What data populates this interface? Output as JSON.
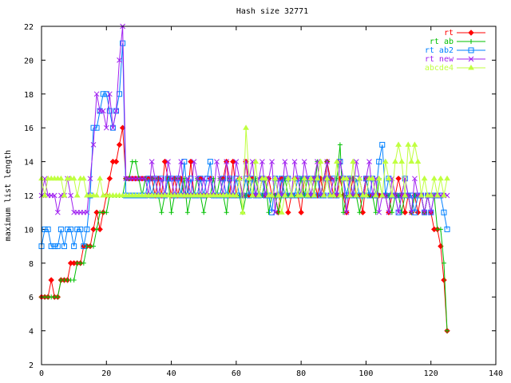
{
  "chart_data": {
    "type": "line",
    "title": "Hash size 32771",
    "xlabel": "",
    "ylabel": "maximum list length",
    "xlim": [
      0,
      140
    ],
    "ylim": [
      2,
      22
    ],
    "x_ticks": [
      0,
      20,
      40,
      60,
      80,
      100,
      120,
      140
    ],
    "y_ticks": [
      2,
      4,
      6,
      8,
      10,
      12,
      14,
      16,
      18,
      20,
      22
    ],
    "x_tick_labels": [
      "0",
      "20",
      "40",
      "60",
      "80",
      "100",
      "120",
      "140"
    ],
    "y_tick_labels": [
      "2",
      "4",
      "6",
      "8",
      "10",
      "12",
      "14",
      "16",
      "18",
      "20",
      "22"
    ],
    "legend_position": "top-right",
    "grid": false,
    "series": [
      {
        "name": "rt",
        "color": "#ff0000",
        "marker": "diamond",
        "x": [
          0,
          1,
          2,
          3,
          4,
          5,
          6,
          7,
          8,
          9,
          10,
          11,
          12,
          13,
          14,
          15,
          16,
          17,
          18,
          19,
          20,
          21,
          22,
          23,
          24,
          25,
          26,
          27,
          28,
          29,
          30,
          31,
          32,
          33,
          34,
          35,
          36,
          37,
          38,
          39,
          40,
          41,
          42,
          43,
          44,
          45,
          46,
          47,
          48,
          49,
          50,
          51,
          52,
          53,
          54,
          55,
          56,
          57,
          58,
          59,
          60,
          61,
          62,
          63,
          64,
          65,
          66,
          67,
          68,
          69,
          70,
          71,
          72,
          73,
          74,
          75,
          76,
          77,
          78,
          79,
          80,
          81,
          82,
          83,
          84,
          85,
          86,
          87,
          88,
          89,
          90,
          91,
          92,
          93,
          94,
          95,
          96,
          97,
          98,
          99,
          100,
          101,
          102,
          103,
          104,
          105,
          106,
          107,
          108,
          109,
          110,
          111,
          112,
          113,
          114,
          115,
          116,
          117,
          118,
          119,
          120,
          121,
          122,
          123,
          124,
          125
        ],
        "values": [
          6,
          6,
          6,
          7,
          6,
          6,
          7,
          7,
          7,
          8,
          8,
          8,
          8,
          9,
          9,
          9,
          10,
          11,
          10,
          11,
          12,
          13,
          14,
          14,
          15,
          16,
          13,
          13,
          13,
          13,
          13,
          13,
          13,
          13,
          13,
          12,
          13,
          12,
          14,
          13,
          12,
          13,
          12,
          13,
          12,
          12,
          14,
          12,
          12,
          13,
          12,
          12,
          13,
          12,
          12,
          12,
          13,
          14,
          12,
          14,
          12,
          13,
          12,
          14,
          12,
          13,
          12,
          12,
          13,
          12,
          13,
          12,
          12,
          11,
          13,
          12,
          11,
          12,
          13,
          12,
          11,
          13,
          12,
          12,
          13,
          12,
          13,
          12,
          14,
          13,
          12,
          12,
          13,
          12,
          11,
          12,
          13,
          12,
          12,
          11,
          13,
          12,
          12,
          12,
          12,
          12,
          12,
          11,
          12,
          12,
          13,
          12,
          11,
          12,
          11,
          12,
          11,
          12,
          11,
          12,
          11,
          10,
          10,
          9,
          7,
          4
        ]
      },
      {
        "name": "rt ab",
        "color": "#00c000",
        "marker": "plus",
        "x": [
          0,
          1,
          2,
          3,
          4,
          5,
          6,
          7,
          8,
          9,
          10,
          11,
          12,
          13,
          14,
          15,
          16,
          17,
          18,
          19,
          20,
          21,
          22,
          23,
          24,
          25,
          26,
          27,
          28,
          29,
          30,
          31,
          32,
          33,
          34,
          35,
          36,
          37,
          38,
          39,
          40,
          41,
          42,
          43,
          44,
          45,
          46,
          47,
          48,
          49,
          50,
          51,
          52,
          53,
          54,
          55,
          56,
          57,
          58,
          59,
          60,
          61,
          62,
          63,
          64,
          65,
          66,
          67,
          68,
          69,
          70,
          71,
          72,
          73,
          74,
          75,
          76,
          77,
          78,
          79,
          80,
          81,
          82,
          83,
          84,
          85,
          86,
          87,
          88,
          89,
          90,
          91,
          92,
          93,
          94,
          95,
          96,
          97,
          98,
          99,
          100,
          101,
          102,
          103,
          104,
          105,
          106,
          107,
          108,
          109,
          110,
          111,
          112,
          113,
          114,
          115,
          116,
          117,
          118,
          119,
          120,
          121,
          122,
          123,
          124,
          125
        ],
        "values": [
          6,
          6,
          6,
          6,
          6,
          6,
          7,
          7,
          7,
          7,
          7,
          8,
          8,
          8,
          9,
          9,
          9,
          10,
          11,
          11,
          11,
          12,
          12,
          12,
          12,
          12,
          13,
          13,
          14,
          14,
          13,
          12,
          13,
          12,
          12,
          13,
          12,
          11,
          12,
          13,
          11,
          12,
          13,
          12,
          13,
          11,
          12,
          12,
          13,
          12,
          11,
          12,
          12,
          13,
          12,
          13,
          12,
          11,
          13,
          12,
          12,
          12,
          11,
          12,
          13,
          12,
          13,
          12,
          12,
          13,
          11,
          12,
          12,
          11,
          12,
          13,
          12,
          12,
          12,
          12,
          13,
          12,
          13,
          12,
          12,
          14,
          12,
          13,
          14,
          12,
          12,
          13,
          15,
          11,
          12,
          13,
          12,
          12,
          11,
          12,
          13,
          12,
          12,
          11,
          13,
          12,
          12,
          12,
          11,
          12,
          12,
          11,
          12,
          12,
          11,
          12,
          12,
          12,
          11,
          12,
          12,
          12,
          10,
          10,
          8,
          4
        ]
      },
      {
        "name": "rt ab2",
        "color": "#0080ff",
        "marker": "square",
        "x": [
          0,
          1,
          2,
          3,
          4,
          5,
          6,
          7,
          8,
          9,
          10,
          11,
          12,
          13,
          14,
          15,
          16,
          17,
          18,
          19,
          20,
          21,
          22,
          23,
          24,
          25,
          26,
          27,
          28,
          29,
          30,
          31,
          32,
          33,
          34,
          35,
          36,
          37,
          38,
          39,
          40,
          41,
          42,
          43,
          44,
          45,
          46,
          47,
          48,
          49,
          50,
          51,
          52,
          53,
          54,
          55,
          56,
          57,
          58,
          59,
          60,
          61,
          62,
          63,
          64,
          65,
          66,
          67,
          68,
          69,
          70,
          71,
          72,
          73,
          74,
          75,
          76,
          77,
          78,
          79,
          80,
          81,
          82,
          83,
          84,
          85,
          86,
          87,
          88,
          89,
          90,
          91,
          92,
          93,
          94,
          95,
          96,
          97,
          98,
          99,
          100,
          101,
          102,
          103,
          104,
          105,
          106,
          107,
          108,
          109,
          110,
          111,
          112,
          113,
          114,
          115,
          116,
          117,
          118,
          119,
          120,
          121,
          122,
          123,
          124,
          125
        ],
        "values": [
          9,
          10,
          10,
          9,
          9,
          9,
          10,
          9,
          10,
          10,
          9,
          10,
          10,
          9,
          10,
          12,
          16,
          16,
          17,
          18,
          18,
          17,
          16,
          17,
          18,
          21,
          12,
          12,
          12,
          12,
          12,
          12,
          12,
          13,
          12,
          13,
          12,
          13,
          12,
          13,
          13,
          12,
          13,
          12,
          14,
          12,
          13,
          12,
          12,
          13,
          12,
          13,
          14,
          12,
          12,
          12,
          13,
          12,
          13,
          12,
          13,
          12,
          12,
          13,
          12,
          13,
          12,
          12,
          13,
          12,
          12,
          11,
          13,
          12,
          13,
          12,
          13,
          12,
          12,
          13,
          12,
          13,
          12,
          13,
          12,
          13,
          12,
          12,
          13,
          12,
          13,
          12,
          14,
          13,
          12,
          13,
          12,
          13,
          12,
          12,
          13,
          12,
          13,
          12,
          14,
          15,
          12,
          13,
          12,
          12,
          11,
          12,
          13,
          12,
          12,
          11,
          12,
          12,
          11,
          12,
          11,
          12,
          12,
          12,
          11,
          10
        ]
      },
      {
        "name": "rt new",
        "color": "#a020f0",
        "marker": "cross",
        "x": [
          0,
          1,
          2,
          3,
          4,
          5,
          6,
          7,
          8,
          9,
          10,
          11,
          12,
          13,
          14,
          15,
          16,
          17,
          18,
          19,
          20,
          21,
          22,
          23,
          24,
          25,
          26,
          27,
          28,
          29,
          30,
          31,
          32,
          33,
          34,
          35,
          36,
          37,
          38,
          39,
          40,
          41,
          42,
          43,
          44,
          45,
          46,
          47,
          48,
          49,
          50,
          51,
          52,
          53,
          54,
          55,
          56,
          57,
          58,
          59,
          60,
          61,
          62,
          63,
          64,
          65,
          66,
          67,
          68,
          69,
          70,
          71,
          72,
          73,
          74,
          75,
          76,
          77,
          78,
          79,
          80,
          81,
          82,
          83,
          84,
          85,
          86,
          87,
          88,
          89,
          90,
          91,
          92,
          93,
          94,
          95,
          96,
          97,
          98,
          99,
          100,
          101,
          102,
          103,
          104,
          105,
          106,
          107,
          108,
          109,
          110,
          111,
          112,
          113,
          114,
          115,
          116,
          117,
          118,
          119,
          120,
          121,
          122,
          123,
          124,
          125
        ],
        "values": [
          12,
          13,
          12,
          12,
          12,
          11,
          12,
          12,
          13,
          12,
          11,
          11,
          11,
          11,
          11,
          13,
          15,
          18,
          17,
          17,
          16,
          18,
          16,
          17,
          20,
          22,
          13,
          13,
          13,
          13,
          13,
          13,
          13,
          12,
          14,
          13,
          12,
          13,
          12,
          14,
          13,
          12,
          13,
          14,
          12,
          13,
          12,
          14,
          13,
          12,
          13,
          12,
          13,
          12,
          14,
          13,
          12,
          14,
          13,
          12,
          14,
          13,
          12,
          14,
          13,
          14,
          12,
          13,
          14,
          12,
          13,
          14,
          11,
          13,
          12,
          14,
          13,
          12,
          14,
          13,
          12,
          14,
          13,
          12,
          13,
          14,
          12,
          13,
          14,
          12,
          13,
          12,
          14,
          13,
          11,
          13,
          12,
          14,
          13,
          12,
          13,
          14,
          12,
          13,
          11,
          12,
          12,
          11,
          13,
          12,
          11,
          12,
          13,
          12,
          11,
          13,
          12,
          12,
          11,
          12,
          11,
          12,
          12,
          12,
          12,
          12
        ]
      },
      {
        "name": "abcde4",
        "color": "#c0ff40",
        "marker": "triangle",
        "x": [
          0,
          1,
          2,
          3,
          4,
          5,
          6,
          7,
          8,
          9,
          10,
          11,
          12,
          13,
          14,
          15,
          16,
          17,
          18,
          19,
          20,
          21,
          22,
          23,
          24,
          25,
          26,
          27,
          28,
          29,
          30,
          31,
          32,
          33,
          34,
          35,
          36,
          37,
          38,
          39,
          40,
          41,
          42,
          43,
          44,
          45,
          46,
          47,
          48,
          49,
          50,
          51,
          52,
          53,
          54,
          55,
          56,
          57,
          58,
          59,
          60,
          61,
          62,
          63,
          64,
          65,
          66,
          67,
          68,
          69,
          70,
          71,
          72,
          73,
          74,
          75,
          76,
          77,
          78,
          79,
          80,
          81,
          82,
          83,
          84,
          85,
          86,
          87,
          88,
          89,
          90,
          91,
          92,
          93,
          94,
          95,
          96,
          97,
          98,
          99,
          100,
          101,
          102,
          103,
          104,
          105,
          106,
          107,
          108,
          109,
          110,
          111,
          112,
          113,
          114,
          115,
          116,
          117,
          118,
          119,
          120,
          121,
          122,
          123,
          124,
          125
        ],
        "values": [
          13,
          12,
          13,
          13,
          13,
          13,
          13,
          12,
          13,
          13,
          13,
          12,
          13,
          13,
          12,
          12,
          12,
          12,
          13,
          12,
          12,
          12,
          12,
          12,
          12,
          12,
          12,
          12,
          12,
          12,
          12,
          12,
          12,
          12,
          12,
          12,
          12,
          12,
          12,
          12,
          12,
          12,
          12,
          12,
          12,
          12,
          12,
          12,
          12,
          12,
          12,
          12,
          12,
          12,
          12,
          12,
          12,
          12,
          12,
          12,
          12,
          13,
          11,
          16,
          13,
          12,
          14,
          12,
          13,
          13,
          12,
          12,
          13,
          12,
          11,
          12,
          13,
          12,
          13,
          12,
          12,
          13,
          12,
          13,
          12,
          13,
          14,
          12,
          13,
          12,
          12,
          14,
          12,
          13,
          13,
          12,
          14,
          12,
          13,
          12,
          12,
          13,
          13,
          12,
          13,
          12,
          14,
          13,
          12,
          14,
          15,
          14,
          12,
          15,
          14,
          15,
          14,
          12,
          13,
          12,
          12,
          13,
          12,
          13,
          12,
          13
        ]
      }
    ]
  }
}
